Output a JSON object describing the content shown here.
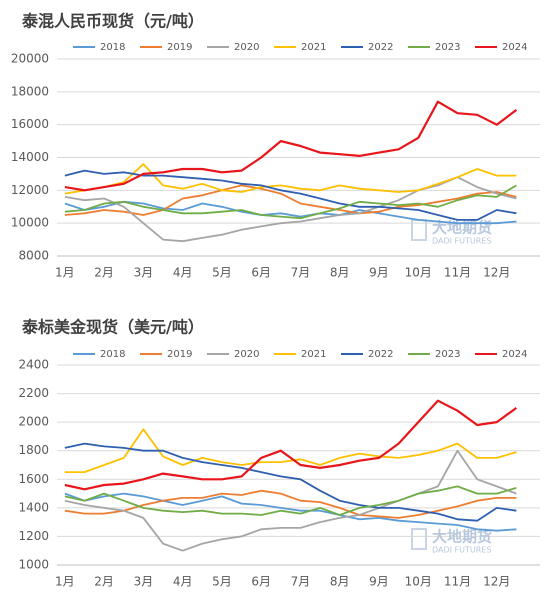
{
  "chart_data": [
    {
      "type": "line",
      "title": "泰混人民币现货（元/吨）",
      "watermark": {
        "name": "大地期货",
        "sub": "DADI FUTURES"
      },
      "xlim": [
        0.8,
        13.1
      ],
      "ylim": [
        8000,
        20000
      ],
      "yticks": [
        8000,
        10000,
        12000,
        14000,
        16000,
        18000,
        20000
      ],
      "grid": true,
      "xticks": [
        {
          "value": 1,
          "label": "1月"
        },
        {
          "value": 2,
          "label": "2月"
        },
        {
          "value": 3,
          "label": "3月"
        },
        {
          "value": 4,
          "label": "4月"
        },
        {
          "value": 5,
          "label": "5月"
        },
        {
          "value": 6,
          "label": "6月"
        },
        {
          "value": 7,
          "label": "7月"
        },
        {
          "value": 8,
          "label": "8月"
        },
        {
          "value": 9,
          "label": "9月"
        },
        {
          "value": 10,
          "label": "10月"
        },
        {
          "value": 11,
          "label": "11月"
        },
        {
          "value": 12,
          "label": "12月"
        }
      ],
      "x": [
        1,
        1.5,
        2,
        2.5,
        3,
        3.5,
        4,
        4.5,
        5,
        5.5,
        6,
        6.5,
        7,
        7.5,
        8,
        8.5,
        9,
        9.5,
        10,
        10.5,
        11,
        11.5,
        12,
        12.5
      ],
      "series": [
        {
          "name": "2018",
          "color": "#5b9bd5",
          "values": [
            11200,
            10800,
            11000,
            11300,
            11200,
            10900,
            10800,
            11200,
            11000,
            10700,
            10500,
            10600,
            10400,
            10600,
            10500,
            10800,
            10600,
            10400,
            10200,
            10100,
            10000,
            10000,
            10000,
            10100
          ]
        },
        {
          "name": "2019",
          "color": "#ed7d31",
          "values": [
            10500,
            10600,
            10800,
            10700,
            10500,
            10800,
            11500,
            11700,
            12000,
            12300,
            12100,
            11800,
            11200,
            11000,
            10800,
            10600,
            10700,
            11000,
            11100,
            11300,
            11500,
            11800,
            11900,
            11600
          ]
        },
        {
          "name": "2020",
          "color": "#a5a5a5",
          "values": [
            11600,
            11400,
            11500,
            11000,
            10000,
            9000,
            8900,
            9100,
            9300,
            9600,
            9800,
            10000,
            10100,
            10300,
            10500,
            10600,
            11000,
            11400,
            12000,
            12300,
            12800,
            12200,
            11800,
            11500
          ]
        },
        {
          "name": "2021",
          "color": "#ffc000",
          "values": [
            11800,
            12000,
            12200,
            12500,
            13600,
            12300,
            12100,
            12400,
            12000,
            11900,
            12200,
            12300,
            12100,
            12000,
            12300,
            12100,
            12000,
            11900,
            12000,
            12400,
            12800,
            13300,
            12900,
            12900
          ]
        },
        {
          "name": "2022",
          "color": "#2e5fb0",
          "values": [
            12900,
            13200,
            13000,
            13100,
            12900,
            12900,
            12800,
            12700,
            12600,
            12400,
            12300,
            12000,
            11800,
            11500,
            11200,
            11000,
            11000,
            10900,
            10800,
            10500,
            10200,
            10200,
            10800,
            10600
          ]
        },
        {
          "name": "2023",
          "color": "#70ad47",
          "values": [
            10700,
            10800,
            11200,
            11300,
            11000,
            10800,
            10600,
            10600,
            10700,
            10800,
            10500,
            10400,
            10300,
            10600,
            10900,
            11300,
            11200,
            11100,
            11200,
            11000,
            11400,
            11700,
            11600,
            12300
          ]
        },
        {
          "name": "2024",
          "color": "#e8161b",
          "values": [
            12200,
            12000,
            12200,
            12400,
            13000,
            13100,
            13300,
            13300,
            13100,
            13200,
            14000,
            15000,
            14700,
            14300,
            14200,
            14100,
            14300,
            14500,
            15200,
            17400,
            16700,
            16600,
            16000,
            16900
          ]
        }
      ]
    },
    {
      "type": "line",
      "title": "泰标美金现货（美元/吨）",
      "watermark": {
        "name": "大地期货",
        "sub": "DADI FUTURES"
      },
      "xlim": [
        0.8,
        13.1
      ],
      "ylim": [
        1000,
        2400
      ],
      "yticks": [
        1000,
        1200,
        1400,
        1600,
        1800,
        2000,
        2200,
        2400
      ],
      "grid": true,
      "xticks": [
        {
          "value": 1,
          "label": "1月"
        },
        {
          "value": 2,
          "label": "2月"
        },
        {
          "value": 3,
          "label": "3月"
        },
        {
          "value": 4,
          "label": "4月"
        },
        {
          "value": 5,
          "label": "5月"
        },
        {
          "value": 6,
          "label": "6月"
        },
        {
          "value": 7,
          "label": "7月"
        },
        {
          "value": 8,
          "label": "8月"
        },
        {
          "value": 9,
          "label": "9月"
        },
        {
          "value": 10,
          "label": "10月"
        },
        {
          "value": 11,
          "label": "11月"
        },
        {
          "value": 12,
          "label": "12月"
        }
      ],
      "x": [
        1,
        1.5,
        2,
        2.5,
        3,
        3.5,
        4,
        4.5,
        5,
        5.5,
        6,
        6.5,
        7,
        7.5,
        8,
        8.5,
        9,
        9.5,
        10,
        10.5,
        11,
        11.5,
        12,
        12.5
      ],
      "series": [
        {
          "name": "2018",
          "color": "#5b9bd5",
          "values": [
            1500,
            1450,
            1480,
            1500,
            1480,
            1450,
            1420,
            1450,
            1480,
            1430,
            1420,
            1400,
            1380,
            1380,
            1350,
            1320,
            1330,
            1310,
            1300,
            1290,
            1280,
            1250,
            1240,
            1250
          ]
        },
        {
          "name": "2019",
          "color": "#ed7d31",
          "values": [
            1380,
            1360,
            1360,
            1380,
            1420,
            1450,
            1470,
            1470,
            1500,
            1490,
            1520,
            1500,
            1450,
            1440,
            1400,
            1350,
            1340,
            1330,
            1350,
            1380,
            1410,
            1450,
            1470,
            1470
          ]
        },
        {
          "name": "2020",
          "color": "#a5a5a5",
          "values": [
            1450,
            1420,
            1400,
            1380,
            1330,
            1150,
            1100,
            1150,
            1180,
            1200,
            1250,
            1260,
            1260,
            1300,
            1330,
            1350,
            1400,
            1450,
            1500,
            1550,
            1800,
            1600,
            1550,
            1500
          ]
        },
        {
          "name": "2021",
          "color": "#ffc000",
          "values": [
            1650,
            1650,
            1700,
            1750,
            1950,
            1760,
            1700,
            1750,
            1720,
            1700,
            1720,
            1720,
            1740,
            1700,
            1750,
            1780,
            1760,
            1750,
            1770,
            1800,
            1850,
            1750,
            1750,
            1790
          ]
        },
        {
          "name": "2022",
          "color": "#2e5fb0",
          "values": [
            1820,
            1850,
            1830,
            1820,
            1800,
            1800,
            1750,
            1720,
            1700,
            1680,
            1650,
            1620,
            1600,
            1520,
            1450,
            1420,
            1400,
            1400,
            1380,
            1360,
            1320,
            1310,
            1400,
            1380
          ]
        },
        {
          "name": "2023",
          "color": "#70ad47",
          "values": [
            1480,
            1450,
            1500,
            1450,
            1400,
            1380,
            1370,
            1380,
            1360,
            1360,
            1350,
            1380,
            1360,
            1400,
            1350,
            1400,
            1420,
            1450,
            1500,
            1520,
            1550,
            1500,
            1500,
            1540
          ]
        },
        {
          "name": "2024",
          "color": "#e8161b",
          "values": [
            1560,
            1530,
            1560,
            1570,
            1600,
            1640,
            1620,
            1600,
            1600,
            1620,
            1750,
            1800,
            1700,
            1680,
            1700,
            1730,
            1750,
            1850,
            2000,
            2150,
            2080,
            1980,
            2000,
            2100
          ]
        }
      ]
    }
  ]
}
